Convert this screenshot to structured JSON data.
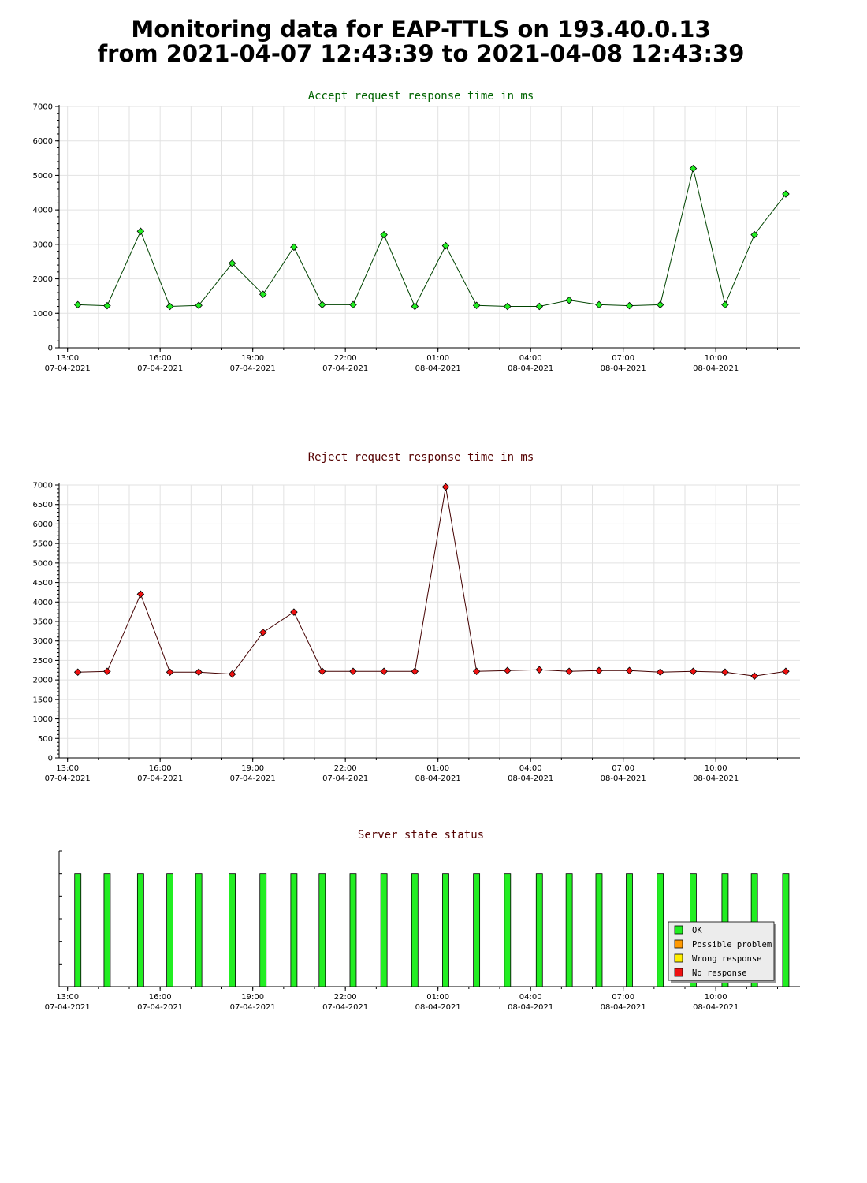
{
  "page": {
    "title_line1": "Monitoring data for EAP-TTLS on 193.40.0.13",
    "title_line2": "from 2021-04-07 12:43:39 to 2021-04-08 12:43:39"
  },
  "x_axis": {
    "start": "2021-04-07 12:43:39",
    "end": "2021-04-08 12:43:39",
    "ticks": [
      {
        "time": "13:00",
        "date": "07-04-2021"
      },
      {
        "time": "16:00",
        "date": "07-04-2021"
      },
      {
        "time": "19:00",
        "date": "07-04-2021"
      },
      {
        "time": "22:00",
        "date": "07-04-2021"
      },
      {
        "time": "01:00",
        "date": "08-04-2021"
      },
      {
        "time": "04:00",
        "date": "08-04-2021"
      },
      {
        "time": "07:00",
        "date": "08-04-2021"
      },
      {
        "time": "10:00",
        "date": "08-04-2021"
      }
    ]
  },
  "chart_data": [
    {
      "type": "line",
      "title": "Accept request response time in ms",
      "title_color": "#006400",
      "line_color": "#004400",
      "marker_color": "#22ee22",
      "ylim": [
        0,
        7000
      ],
      "yticks": [
        0,
        1000,
        2000,
        3000,
        4000,
        5000,
        6000,
        7000
      ],
      "x": [
        "2021-04-07 13:20",
        "2021-04-07 14:17",
        "2021-04-07 15:22",
        "2021-04-07 16:19",
        "2021-04-07 17:15",
        "2021-04-07 18:20",
        "2021-04-07 19:20",
        "2021-04-07 20:20",
        "2021-04-07 21:15",
        "2021-04-07 22:15",
        "2021-04-07 23:15",
        "2021-04-08 00:15",
        "2021-04-08 01:15",
        "2021-04-08 02:15",
        "2021-04-08 03:15",
        "2021-04-08 04:17",
        "2021-04-08 05:15",
        "2021-04-08 06:13",
        "2021-04-08 07:12",
        "2021-04-08 08:12",
        "2021-04-08 09:16",
        "2021-04-08 10:18",
        "2021-04-08 11:15",
        "2021-04-08 12:16"
      ],
      "values": [
        1250,
        1220,
        3380,
        1200,
        1230,
        2450,
        1550,
        2920,
        1250,
        1250,
        3280,
        1200,
        2960,
        1230,
        1200,
        1200,
        1380,
        1250,
        1220,
        1250,
        5200,
        1250,
        3280,
        4460
      ]
    },
    {
      "type": "line",
      "title": "Reject request response time in ms",
      "title_color": "#550000",
      "line_color": "#440000",
      "marker_color": "#ee1111",
      "ylim": [
        0,
        7000
      ],
      "yticks": [
        0,
        500,
        1000,
        1500,
        2000,
        2500,
        3000,
        3500,
        4000,
        4500,
        5000,
        5500,
        6000,
        6500,
        7000
      ],
      "x": [
        "2021-04-07 13:20",
        "2021-04-07 14:17",
        "2021-04-07 15:22",
        "2021-04-07 16:19",
        "2021-04-07 17:15",
        "2021-04-07 18:20",
        "2021-04-07 19:20",
        "2021-04-07 20:20",
        "2021-04-07 21:15",
        "2021-04-07 22:15",
        "2021-04-07 23:15",
        "2021-04-08 00:15",
        "2021-04-08 01:15",
        "2021-04-08 02:15",
        "2021-04-08 03:15",
        "2021-04-08 04:17",
        "2021-04-08 05:15",
        "2021-04-08 06:13",
        "2021-04-08 07:12",
        "2021-04-08 08:12",
        "2021-04-08 09:16",
        "2021-04-08 10:18",
        "2021-04-08 11:15",
        "2021-04-08 12:16"
      ],
      "values": [
        2200,
        2220,
        4200,
        2200,
        2200,
        2150,
        3220,
        3740,
        2220,
        2220,
        2220,
        2220,
        6950,
        2220,
        2240,
        2260,
        2220,
        2240,
        2240,
        2200,
        2220,
        2200,
        2100,
        2220
      ]
    },
    {
      "type": "bar",
      "title": "Server state status",
      "title_color": "#550000",
      "x": [
        "2021-04-07 13:20",
        "2021-04-07 14:17",
        "2021-04-07 15:22",
        "2021-04-07 16:19",
        "2021-04-07 17:15",
        "2021-04-07 18:20",
        "2021-04-07 19:20",
        "2021-04-07 20:20",
        "2021-04-07 21:15",
        "2021-04-07 22:15",
        "2021-04-07 23:15",
        "2021-04-08 00:15",
        "2021-04-08 01:15",
        "2021-04-08 02:15",
        "2021-04-08 03:15",
        "2021-04-08 04:17",
        "2021-04-08 05:15",
        "2021-04-08 06:13",
        "2021-04-08 07:12",
        "2021-04-08 08:12",
        "2021-04-08 09:16",
        "2021-04-08 10:18",
        "2021-04-08 11:15",
        "2021-04-08 12:16"
      ],
      "values": [
        "OK",
        "OK",
        "OK",
        "OK",
        "OK",
        "OK",
        "OK",
        "OK",
        "OK",
        "OK",
        "OK",
        "OK",
        "OK",
        "OK",
        "OK",
        "OK",
        "OK",
        "OK",
        "OK",
        "OK",
        "OK",
        "OK",
        "OK",
        "OK"
      ],
      "legend_position": "bottom-right",
      "legend": [
        {
          "label": "OK",
          "color": "#22ee22"
        },
        {
          "label": "Possible problem",
          "color": "#ff9900"
        },
        {
          "label": "Wrong response",
          "color": "#ffee00"
        },
        {
          "label": "No response",
          "color": "#ee1111"
        }
      ]
    }
  ]
}
